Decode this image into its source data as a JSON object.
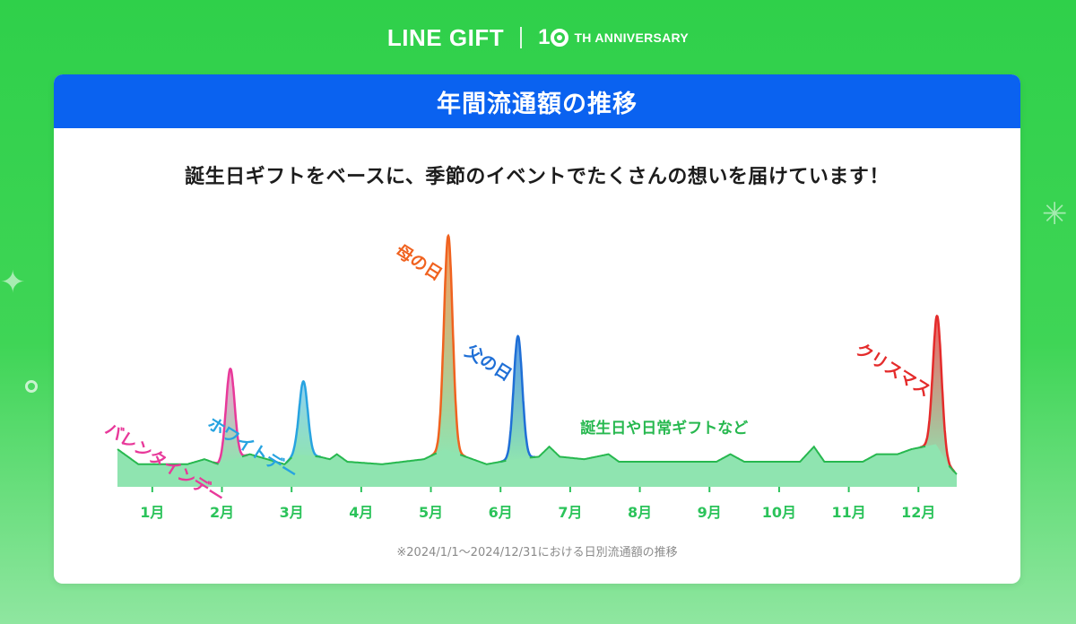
{
  "brand": {
    "title": "LINE GIFT",
    "anniversary_num": "1",
    "anniversary_text": "TH ANNIVERSARY"
  },
  "card": {
    "title": "年間流通額の推移",
    "subtitle": "誕生日ギフトをベースに、季節のイベントでたくさんの想いを届けています！",
    "footnote": "※2024/1/1〜2024/12/31における日別流通額の推移"
  },
  "colors": {
    "background": "#2fd04a",
    "header": "#0a62f0",
    "baseline_line": "#27b84f",
    "baseline_fill": "#8fe4b0"
  },
  "chart_data": {
    "type": "area",
    "x_unit": "month",
    "categories": [
      "1月",
      "2月",
      "3月",
      "4月",
      "5月",
      "6月",
      "7月",
      "8月",
      "9月",
      "10月",
      "11月",
      "12月"
    ],
    "xlim": [
      0.5,
      12.55
    ],
    "ylim": [
      0,
      1.0
    ],
    "y_axis_labels": false,
    "baseline": {
      "label": "誕生日や日常ギフトなど",
      "color": "#27b84f",
      "fill": "#8fe4b0",
      "points": [
        [
          0.5,
          0.15
        ],
        [
          0.8,
          0.09
        ],
        [
          1.5,
          0.09
        ],
        [
          1.75,
          0.11
        ],
        [
          1.95,
          0.09
        ],
        [
          2.4,
          0.13
        ],
        [
          2.9,
          0.09
        ],
        [
          3.05,
          0.13
        ],
        [
          3.4,
          0.12
        ],
        [
          3.55,
          0.11
        ],
        [
          3.65,
          0.13
        ],
        [
          3.8,
          0.1
        ],
        [
          4.3,
          0.09
        ],
        [
          4.9,
          0.11
        ],
        [
          5.2,
          0.15
        ],
        [
          5.5,
          0.12
        ],
        [
          5.8,
          0.09
        ],
        [
          6.2,
          0.11
        ],
        [
          6.55,
          0.12
        ],
        [
          6.7,
          0.16
        ],
        [
          6.85,
          0.12
        ],
        [
          7.2,
          0.11
        ],
        [
          7.55,
          0.13
        ],
        [
          7.7,
          0.1
        ],
        [
          8.5,
          0.1
        ],
        [
          9.1,
          0.1
        ],
        [
          9.3,
          0.13
        ],
        [
          9.5,
          0.1
        ],
        [
          10.3,
          0.1
        ],
        [
          10.5,
          0.16
        ],
        [
          10.65,
          0.1
        ],
        [
          11.2,
          0.1
        ],
        [
          11.4,
          0.13
        ],
        [
          11.7,
          0.13
        ],
        [
          11.9,
          0.15
        ],
        [
          12.25,
          0.17
        ],
        [
          12.45,
          0.08
        ],
        [
          12.55,
          0.05
        ]
      ]
    },
    "peaks": [
      {
        "name": "バレンタインデー",
        "center": 2.12,
        "value": 0.47,
        "color": "#e8399a",
        "fill": "#f79dcf"
      },
      {
        "name": "ホワイトデー",
        "center": 3.17,
        "value": 0.42,
        "color": "#27a3e0",
        "fill": "#8fd0f3"
      },
      {
        "name": "母の日",
        "center": 5.25,
        "value": 1.0,
        "color": "#f0621f",
        "fill": "#f79a5c"
      },
      {
        "name": "父の日",
        "center": 6.25,
        "value": 0.6,
        "color": "#1f6fd6",
        "fill": "#5b9bea"
      },
      {
        "name": "クリスマス",
        "center": 12.27,
        "value": 0.68,
        "color": "#e42b2b",
        "fill": "#f06363"
      }
    ]
  }
}
